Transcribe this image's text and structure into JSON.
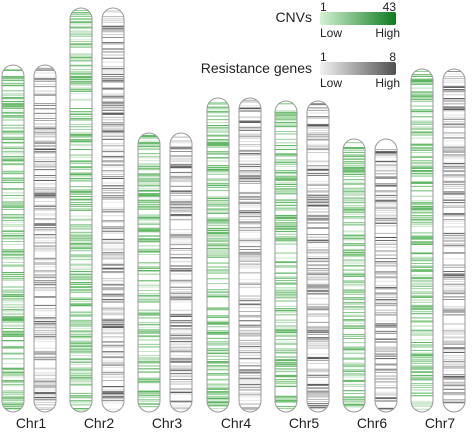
{
  "legend": {
    "cnv": {
      "title": "CNVs",
      "min": "1",
      "max": "43",
      "low": "Low",
      "high": "High",
      "color_low": "#d4f2d4",
      "color_high": "#0e7a1e"
    },
    "resistance": {
      "title": "Resistance genes",
      "min": "1",
      "max": "8",
      "low": "Low",
      "high": "High",
      "color_low": "#f2f2f2",
      "color_high": "#505050"
    }
  },
  "chromosomes": [
    {
      "label": "Chr1",
      "relative_length": 0.86
    },
    {
      "label": "Chr2",
      "relative_length": 1.0
    },
    {
      "label": "Chr3",
      "relative_length": 0.69
    },
    {
      "label": "Chr4",
      "relative_length": 0.777
    },
    {
      "label": "Chr5",
      "relative_length": 0.77
    },
    {
      "label": "Chr6",
      "relative_length": 0.675
    },
    {
      "label": "Chr7",
      "relative_length": 0.85
    }
  ],
  "colors": {
    "cnv_track": "#56b35a",
    "resistance_track": "#555555",
    "outline": "#9a9a9a"
  }
}
